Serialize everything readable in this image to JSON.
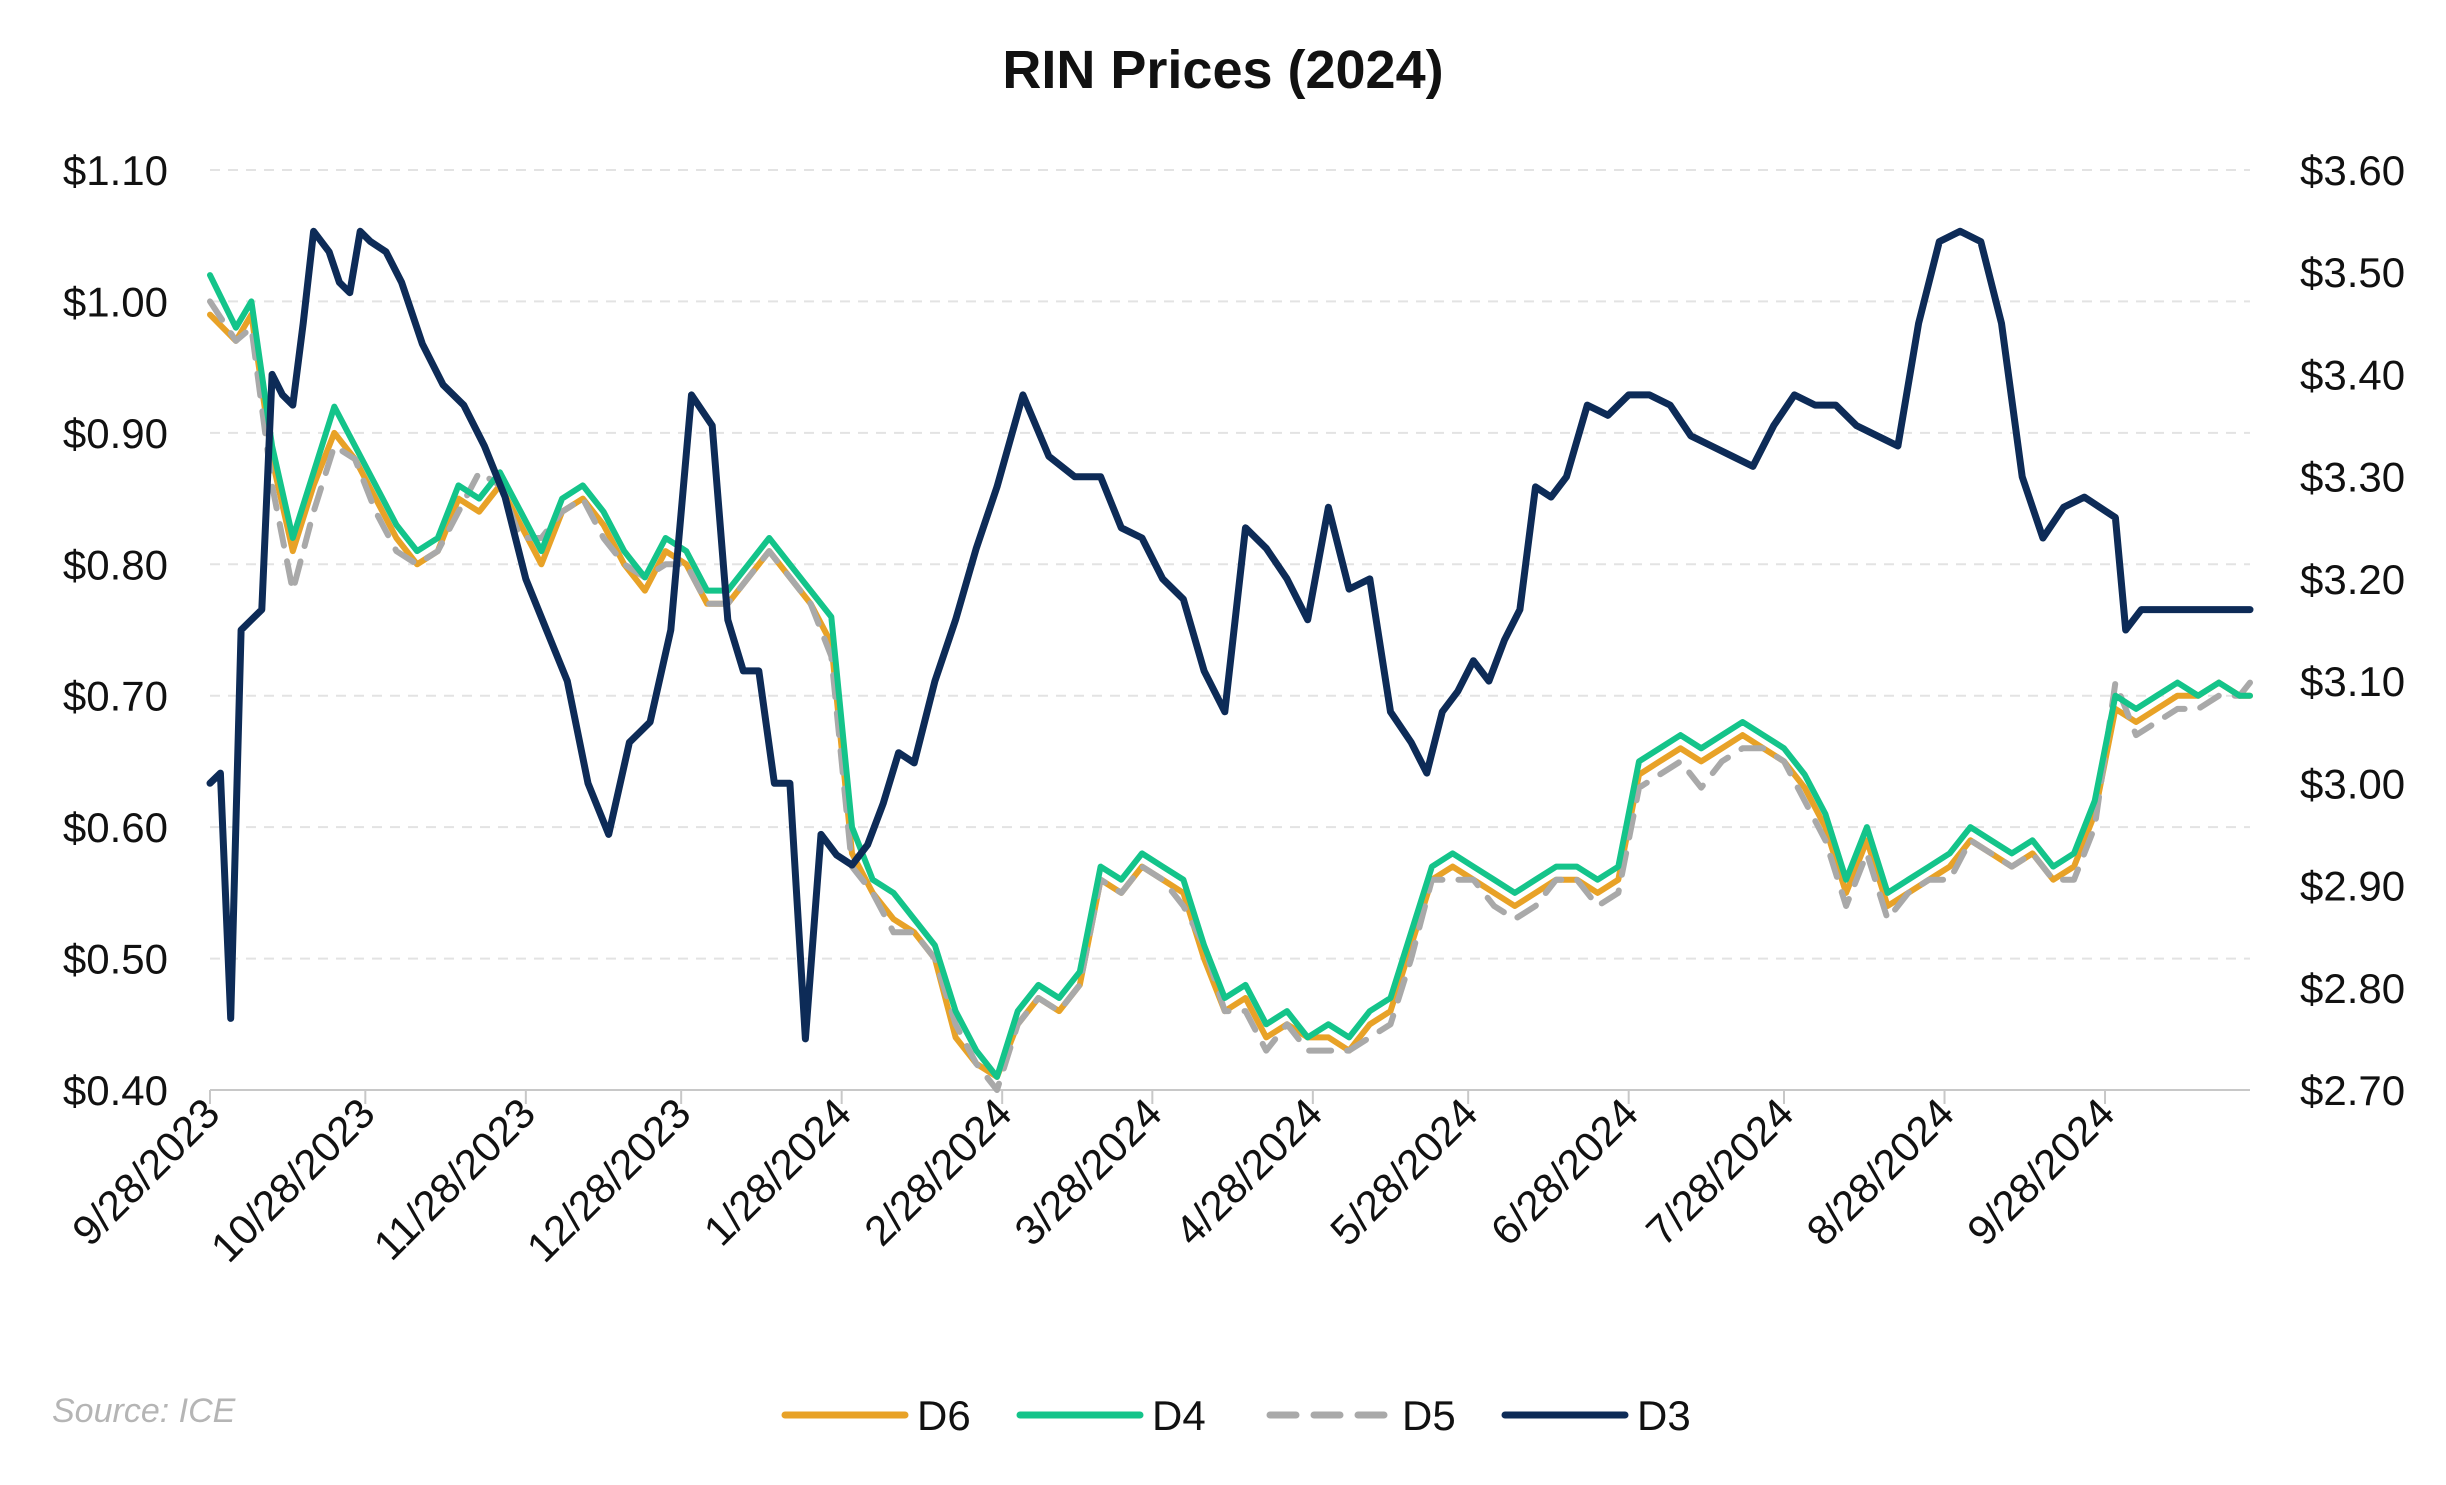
{
  "chart_data": {
    "type": "line",
    "title": "RIN Prices (2024)",
    "source": "Source: ICE",
    "x_ticks": [
      "9/28/2023",
      "10/28/2023",
      "11/28/2023",
      "12/28/2023",
      "1/28/2024",
      "2/28/2024",
      "3/28/2024",
      "4/28/2024",
      "5/28/2024",
      "6/28/2024",
      "7/28/2024",
      "8/28/2024",
      "9/28/2024"
    ],
    "x_range": [
      "2023-09-28",
      "2024-10-26"
    ],
    "y_left": {
      "ticks": [
        "$0.40",
        "$0.50",
        "$0.60",
        "$0.70",
        "$0.80",
        "$0.90",
        "$1.00",
        "$1.10"
      ],
      "range": [
        0.4,
        1.1
      ]
    },
    "y_right": {
      "ticks": [
        "$2.70",
        "$2.80",
        "$2.90",
        "$3.00",
        "$3.10",
        "$3.20",
        "$3.30",
        "$3.40",
        "$3.50",
        "$3.60"
      ],
      "range": [
        2.7,
        3.6
      ]
    },
    "grid": "horizontal dashed",
    "legend_position": "bottom",
    "series": [
      {
        "name": "D6",
        "axis": "left",
        "color": "#E8A227",
        "style": "solid",
        "x": [
          "2023-09-28",
          "2023-10-03",
          "2023-10-06",
          "2023-10-10",
          "2023-10-14",
          "2023-10-18",
          "2023-10-22",
          "2023-10-26",
          "2023-10-30",
          "2023-11-03",
          "2023-11-07",
          "2023-11-11",
          "2023-11-15",
          "2023-11-19",
          "2023-11-23",
          "2023-11-27",
          "2023-12-01",
          "2023-12-05",
          "2023-12-09",
          "2023-12-13",
          "2023-12-17",
          "2023-12-21",
          "2023-12-25",
          "2023-12-29",
          "2024-01-02",
          "2024-01-06",
          "2024-01-10",
          "2024-01-14",
          "2024-01-18",
          "2024-01-22",
          "2024-01-26",
          "2024-01-30",
          "2024-02-03",
          "2024-02-07",
          "2024-02-11",
          "2024-02-15",
          "2024-02-19",
          "2024-02-23",
          "2024-02-27",
          "2024-03-02",
          "2024-03-06",
          "2024-03-10",
          "2024-03-14",
          "2024-03-18",
          "2024-03-22",
          "2024-03-26",
          "2024-03-30",
          "2024-04-03",
          "2024-04-07",
          "2024-04-11",
          "2024-04-15",
          "2024-04-19",
          "2024-04-23",
          "2024-04-27",
          "2024-05-01",
          "2024-05-05",
          "2024-05-09",
          "2024-05-13",
          "2024-05-17",
          "2024-05-21",
          "2024-05-25",
          "2024-05-29",
          "2024-06-02",
          "2024-06-06",
          "2024-06-10",
          "2024-06-14",
          "2024-06-18",
          "2024-06-22",
          "2024-06-26",
          "2024-06-30",
          "2024-07-04",
          "2024-07-08",
          "2024-07-12",
          "2024-07-16",
          "2024-07-20",
          "2024-07-24",
          "2024-07-28",
          "2024-08-01",
          "2024-08-05",
          "2024-08-09",
          "2024-08-13",
          "2024-08-17",
          "2024-08-21",
          "2024-08-25",
          "2024-08-29",
          "2024-09-02",
          "2024-09-06",
          "2024-09-10",
          "2024-09-14",
          "2024-09-18",
          "2024-09-22",
          "2024-09-26",
          "2024-09-30",
          "2024-10-04",
          "2024-10-08",
          "2024-10-12",
          "2024-10-16",
          "2024-10-20",
          "2024-10-24",
          "2024-10-26"
        ],
        "y": [
          0.99,
          0.97,
          0.99,
          0.88,
          0.81,
          0.86,
          0.9,
          0.88,
          0.85,
          0.82,
          0.8,
          0.81,
          0.85,
          0.84,
          0.86,
          0.83,
          0.8,
          0.84,
          0.85,
          0.83,
          0.8,
          0.78,
          0.81,
          0.8,
          0.77,
          0.77,
          0.79,
          0.81,
          0.79,
          0.77,
          0.74,
          0.58,
          0.55,
          0.53,
          0.52,
          0.5,
          0.44,
          0.42,
          0.41,
          0.45,
          0.47,
          0.46,
          0.48,
          0.56,
          0.55,
          0.57,
          0.56,
          0.55,
          0.5,
          0.46,
          0.47,
          0.44,
          0.45,
          0.44,
          0.44,
          0.43,
          0.45,
          0.46,
          0.51,
          0.56,
          0.57,
          0.56,
          0.55,
          0.54,
          0.55,
          0.56,
          0.56,
          0.55,
          0.56,
          0.64,
          0.65,
          0.66,
          0.65,
          0.66,
          0.67,
          0.66,
          0.65,
          0.63,
          0.6,
          0.55,
          0.59,
          0.54,
          0.55,
          0.56,
          0.57,
          0.59,
          0.58,
          0.57,
          0.58,
          0.56,
          0.57,
          0.61,
          0.69,
          0.68,
          0.69,
          0.7,
          0.7,
          0.71,
          0.7,
          0.7
        ]
      },
      {
        "name": "D4",
        "axis": "left",
        "color": "#14C48A",
        "style": "solid",
        "x": [
          "2023-09-28",
          "2023-10-03",
          "2023-10-06",
          "2023-10-10",
          "2023-10-14",
          "2023-10-18",
          "2023-10-22",
          "2023-10-26",
          "2023-10-30",
          "2023-11-03",
          "2023-11-07",
          "2023-11-11",
          "2023-11-15",
          "2023-11-19",
          "2023-11-23",
          "2023-11-27",
          "2023-12-01",
          "2023-12-05",
          "2023-12-09",
          "2023-12-13",
          "2023-12-17",
          "2023-12-21",
          "2023-12-25",
          "2023-12-29",
          "2024-01-02",
          "2024-01-06",
          "2024-01-10",
          "2024-01-14",
          "2024-01-18",
          "2024-01-22",
          "2024-01-26",
          "2024-01-30",
          "2024-02-03",
          "2024-02-07",
          "2024-02-11",
          "2024-02-15",
          "2024-02-19",
          "2024-02-23",
          "2024-02-27",
          "2024-03-02",
          "2024-03-06",
          "2024-03-10",
          "2024-03-14",
          "2024-03-18",
          "2024-03-22",
          "2024-03-26",
          "2024-03-30",
          "2024-04-03",
          "2024-04-07",
          "2024-04-11",
          "2024-04-15",
          "2024-04-19",
          "2024-04-23",
          "2024-04-27",
          "2024-05-01",
          "2024-05-05",
          "2024-05-09",
          "2024-05-13",
          "2024-05-17",
          "2024-05-21",
          "2024-05-25",
          "2024-05-29",
          "2024-06-02",
          "2024-06-06",
          "2024-06-10",
          "2024-06-14",
          "2024-06-18",
          "2024-06-22",
          "2024-06-26",
          "2024-06-30",
          "2024-07-04",
          "2024-07-08",
          "2024-07-12",
          "2024-07-16",
          "2024-07-20",
          "2024-07-24",
          "2024-07-28",
          "2024-08-01",
          "2024-08-05",
          "2024-08-09",
          "2024-08-13",
          "2024-08-17",
          "2024-08-21",
          "2024-08-25",
          "2024-08-29",
          "2024-09-02",
          "2024-09-06",
          "2024-09-10",
          "2024-09-14",
          "2024-09-18",
          "2024-09-22",
          "2024-09-26",
          "2024-09-30",
          "2024-10-04",
          "2024-10-08",
          "2024-10-12",
          "2024-10-16",
          "2024-10-20",
          "2024-10-24",
          "2024-10-26"
        ],
        "y": [
          1.02,
          0.98,
          1.0,
          0.89,
          0.82,
          0.87,
          0.92,
          0.89,
          0.86,
          0.83,
          0.81,
          0.82,
          0.86,
          0.85,
          0.87,
          0.84,
          0.81,
          0.85,
          0.86,
          0.84,
          0.81,
          0.79,
          0.82,
          0.81,
          0.78,
          0.78,
          0.8,
          0.82,
          0.8,
          0.78,
          0.76,
          0.6,
          0.56,
          0.55,
          0.53,
          0.51,
          0.46,
          0.43,
          0.41,
          0.46,
          0.48,
          0.47,
          0.49,
          0.57,
          0.56,
          0.58,
          0.57,
          0.56,
          0.51,
          0.47,
          0.48,
          0.45,
          0.46,
          0.44,
          0.45,
          0.44,
          0.46,
          0.47,
          0.52,
          0.57,
          0.58,
          0.57,
          0.56,
          0.55,
          0.56,
          0.57,
          0.57,
          0.56,
          0.57,
          0.65,
          0.66,
          0.67,
          0.66,
          0.67,
          0.68,
          0.67,
          0.66,
          0.64,
          0.61,
          0.56,
          0.6,
          0.55,
          0.56,
          0.57,
          0.58,
          0.6,
          0.59,
          0.58,
          0.59,
          0.57,
          0.58,
          0.62,
          0.7,
          0.69,
          0.7,
          0.71,
          0.7,
          0.71,
          0.7,
          0.7
        ]
      },
      {
        "name": "D5",
        "axis": "left",
        "color": "#A9A9A9",
        "style": "dashed",
        "x": [
          "2023-09-28",
          "2023-10-03",
          "2023-10-06",
          "2023-10-10",
          "2023-10-14",
          "2023-10-18",
          "2023-10-22",
          "2023-10-26",
          "2023-10-30",
          "2023-11-03",
          "2023-11-07",
          "2023-11-11",
          "2023-11-15",
          "2023-11-19",
          "2023-11-23",
          "2023-11-27",
          "2023-12-01",
          "2023-12-05",
          "2023-12-09",
          "2023-12-13",
          "2023-12-17",
          "2023-12-21",
          "2023-12-25",
          "2023-12-29",
          "2024-01-02",
          "2024-01-06",
          "2024-01-10",
          "2024-01-14",
          "2024-01-18",
          "2024-01-22",
          "2024-01-26",
          "2024-01-30",
          "2024-02-03",
          "2024-02-07",
          "2024-02-11",
          "2024-02-15",
          "2024-02-19",
          "2024-02-23",
          "2024-02-27",
          "2024-03-02",
          "2024-03-06",
          "2024-03-10",
          "2024-03-14",
          "2024-03-18",
          "2024-03-22",
          "2024-03-26",
          "2024-03-30",
          "2024-04-03",
          "2024-04-07",
          "2024-04-11",
          "2024-04-15",
          "2024-04-19",
          "2024-04-23",
          "2024-04-27",
          "2024-05-01",
          "2024-05-05",
          "2024-05-09",
          "2024-05-13",
          "2024-05-17",
          "2024-05-21",
          "2024-05-25",
          "2024-05-29",
          "2024-06-02",
          "2024-06-06",
          "2024-06-10",
          "2024-06-14",
          "2024-06-18",
          "2024-06-22",
          "2024-06-26",
          "2024-06-30",
          "2024-07-04",
          "2024-07-08",
          "2024-07-12",
          "2024-07-16",
          "2024-07-20",
          "2024-07-24",
          "2024-07-28",
          "2024-08-01",
          "2024-08-05",
          "2024-08-09",
          "2024-08-13",
          "2024-08-17",
          "2024-08-21",
          "2024-08-25",
          "2024-08-29",
          "2024-09-02",
          "2024-09-06",
          "2024-09-10",
          "2024-09-14",
          "2024-09-18",
          "2024-09-22",
          "2024-09-26",
          "2024-09-30",
          "2024-10-04",
          "2024-10-08",
          "2024-10-12",
          "2024-10-16",
          "2024-10-20",
          "2024-10-24",
          "2024-10-26"
        ],
        "y": [
          1.0,
          0.97,
          0.98,
          0.86,
          0.78,
          0.84,
          0.89,
          0.88,
          0.84,
          0.81,
          0.8,
          0.81,
          0.84,
          0.87,
          0.86,
          0.82,
          0.82,
          0.84,
          0.85,
          0.82,
          0.8,
          0.79,
          0.8,
          0.8,
          0.77,
          0.77,
          0.79,
          0.81,
          0.79,
          0.77,
          0.73,
          0.57,
          0.55,
          0.52,
          0.52,
          0.5,
          0.45,
          0.42,
          0.4,
          0.45,
          0.47,
          0.46,
          0.48,
          0.56,
          0.55,
          0.57,
          0.56,
          0.54,
          0.51,
          0.46,
          0.46,
          0.43,
          0.45,
          0.43,
          0.43,
          0.43,
          0.44,
          0.45,
          0.5,
          0.56,
          0.56,
          0.56,
          0.54,
          0.53,
          0.54,
          0.56,
          0.56,
          0.54,
          0.55,
          0.63,
          0.64,
          0.65,
          0.63,
          0.65,
          0.66,
          0.66,
          0.65,
          0.62,
          0.59,
          0.54,
          0.58,
          0.53,
          0.55,
          0.56,
          0.56,
          0.59,
          0.58,
          0.57,
          0.58,
          0.56,
          0.56,
          0.6,
          0.71,
          0.67,
          0.68,
          0.69,
          0.69,
          0.7,
          0.7,
          0.71
        ]
      },
      {
        "name": "D3",
        "axis": "right",
        "color": "#0D2B57",
        "style": "solid",
        "x": [
          "2023-09-28",
          "2023-09-30",
          "2023-10-02",
          "2023-10-04",
          "2023-10-06",
          "2023-10-08",
          "2023-10-10",
          "2023-10-12",
          "2023-10-14",
          "2023-10-16",
          "2023-10-18",
          "2023-10-21",
          "2023-10-23",
          "2023-10-25",
          "2023-10-27",
          "2023-10-29",
          "2023-11-01",
          "2023-11-04",
          "2023-11-08",
          "2023-11-12",
          "2023-11-16",
          "2023-11-20",
          "2023-11-24",
          "2023-11-28",
          "2023-12-02",
          "2023-12-06",
          "2023-12-10",
          "2023-12-14",
          "2023-12-18",
          "2023-12-22",
          "2023-12-26",
          "2023-12-30",
          "2024-01-03",
          "2024-01-06",
          "2024-01-09",
          "2024-01-12",
          "2024-01-15",
          "2024-01-18",
          "2024-01-21",
          "2024-01-24",
          "2024-01-27",
          "2024-01-30",
          "2024-02-02",
          "2024-02-05",
          "2024-02-08",
          "2024-02-11",
          "2024-02-15",
          "2024-02-19",
          "2024-02-23",
          "2024-02-27",
          "2024-03-03",
          "2024-03-08",
          "2024-03-13",
          "2024-03-18",
          "2024-03-22",
          "2024-03-26",
          "2024-03-30",
          "2024-04-03",
          "2024-04-07",
          "2024-04-11",
          "2024-04-15",
          "2024-04-19",
          "2024-04-23",
          "2024-04-27",
          "2024-05-01",
          "2024-05-05",
          "2024-05-09",
          "2024-05-13",
          "2024-05-17",
          "2024-05-20",
          "2024-05-23",
          "2024-05-26",
          "2024-05-29",
          "2024-06-01",
          "2024-06-04",
          "2024-06-07",
          "2024-06-10",
          "2024-06-13",
          "2024-06-16",
          "2024-06-20",
          "2024-06-24",
          "2024-06-28",
          "2024-07-02",
          "2024-07-06",
          "2024-07-10",
          "2024-07-14",
          "2024-07-18",
          "2024-07-22",
          "2024-07-26",
          "2024-07-30",
          "2024-08-03",
          "2024-08-07",
          "2024-08-11",
          "2024-08-15",
          "2024-08-19",
          "2024-08-23",
          "2024-08-27",
          "2024-08-31",
          "2024-09-04",
          "2024-09-08",
          "2024-09-12",
          "2024-09-16",
          "2024-09-20",
          "2024-09-24",
          "2024-09-27",
          "2024-09-30",
          "2024-10-02",
          "2024-10-05",
          "2024-10-08",
          "2024-10-11",
          "2024-10-14",
          "2024-10-17",
          "2024-10-20",
          "2024-10-23",
          "2024-10-25",
          "2024-10-26"
        ],
        "y": [
          3.0,
          3.01,
          2.77,
          3.15,
          3.16,
          3.17,
          3.4,
          3.38,
          3.37,
          3.45,
          3.54,
          3.52,
          3.49,
          3.48,
          3.54,
          3.53,
          3.52,
          3.49,
          3.43,
          3.39,
          3.37,
          3.33,
          3.28,
          3.2,
          3.15,
          3.1,
          3.0,
          2.95,
          3.04,
          3.06,
          3.15,
          3.38,
          3.35,
          3.16,
          3.11,
          3.11,
          3.0,
          3.0,
          2.75,
          2.95,
          2.93,
          2.92,
          2.94,
          2.98,
          3.03,
          3.02,
          3.1,
          3.16,
          3.23,
          3.29,
          3.38,
          3.32,
          3.3,
          3.3,
          3.25,
          3.24,
          3.2,
          3.18,
          3.11,
          3.07,
          3.25,
          3.23,
          3.2,
          3.16,
          3.27,
          3.19,
          3.2,
          3.07,
          3.04,
          3.01,
          3.07,
          3.09,
          3.12,
          3.1,
          3.14,
          3.17,
          3.29,
          3.28,
          3.3,
          3.37,
          3.36,
          3.38,
          3.38,
          3.37,
          3.34,
          3.33,
          3.32,
          3.31,
          3.35,
          3.38,
          3.37,
          3.37,
          3.35,
          3.34,
          3.33,
          3.45,
          3.53,
          3.54,
          3.53,
          3.45,
          3.3,
          3.24,
          3.27,
          3.28,
          3.27,
          3.26,
          3.15,
          3.17,
          3.17,
          3.17,
          3.17,
          3.17,
          3.17,
          3.17,
          3.17,
          3.17
        ]
      }
    ]
  }
}
